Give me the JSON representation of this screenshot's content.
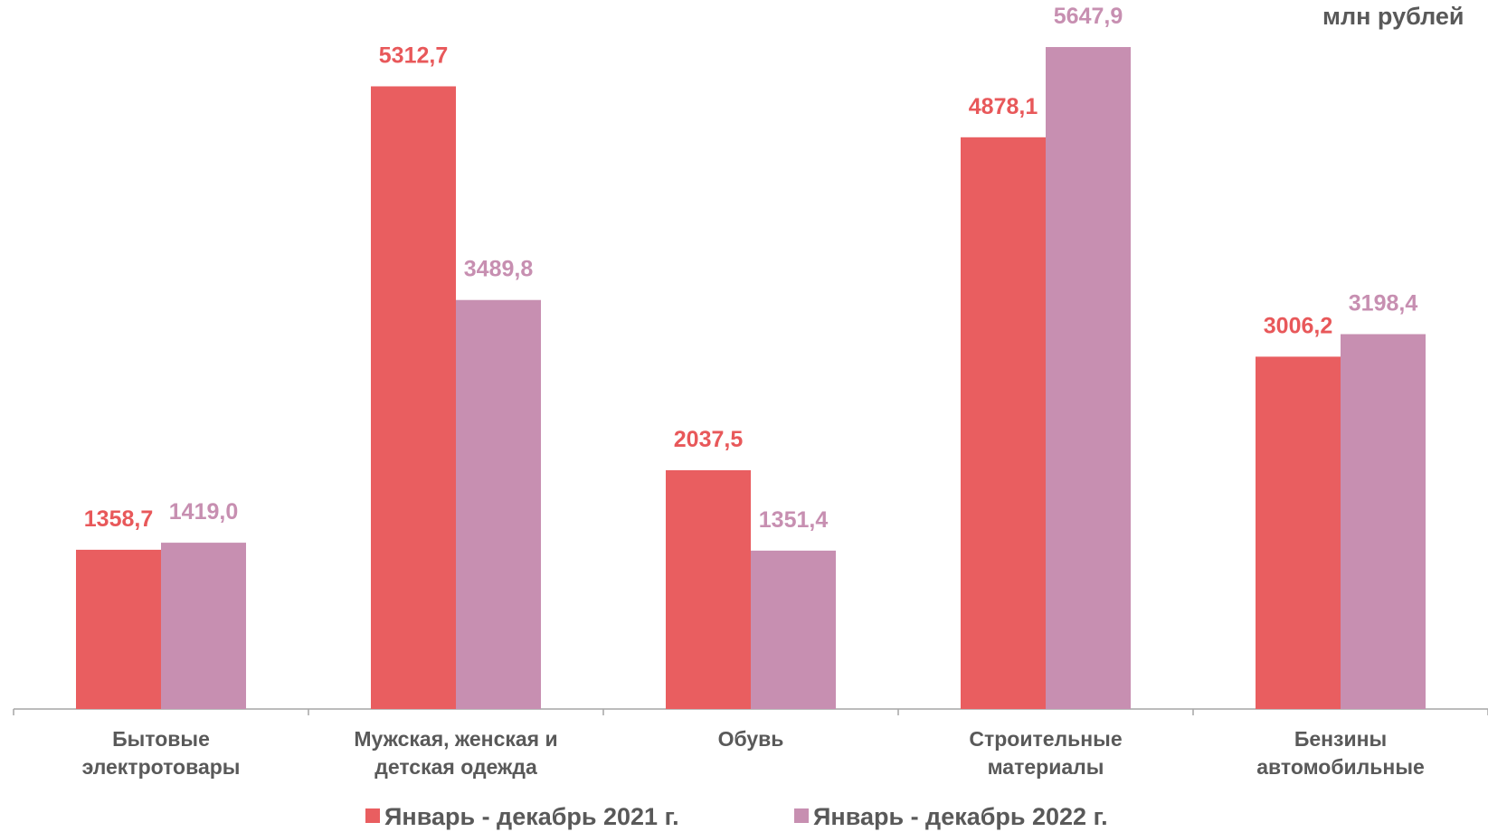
{
  "chart_data": {
    "type": "bar",
    "unit_label": "млн рублей",
    "categories": [
      "Бытовые\nэлектротовары",
      "Мужская, женская и\nдетская одежда",
      "Обувь",
      "Строительные\nматериалы",
      "Бензины\nавтомобильные"
    ],
    "series": [
      {
        "name": "Январь - декабрь 2021 г.",
        "color": "#e95e60",
        "label_color": "#e8585a",
        "values": [
          1358.7,
          5312.7,
          2037.5,
          4878.1,
          3006.2
        ],
        "value_labels": [
          "1358,7",
          "5312,7",
          "2037,5",
          "4878,1",
          "3006,2"
        ]
      },
      {
        "name": "Январь - декабрь 2022 г.",
        "color": "#c78fb1",
        "label_color": "#c78fb1",
        "values": [
          1419.0,
          3489.8,
          1351.4,
          5647.9,
          3198.4
        ],
        "value_labels": [
          "1419,0",
          "3489,8",
          "1351,4",
          "5647,9",
          "3198,4"
        ]
      }
    ]
  }
}
